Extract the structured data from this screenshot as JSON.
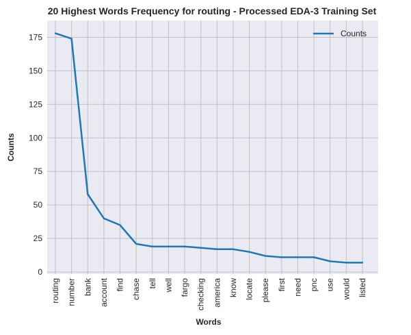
{
  "chart_data": {
    "type": "line",
    "title": "20 Highest Words Frequency for routing - Processed EDA-3 Training Set",
    "xlabel": "Words",
    "ylabel": "Counts",
    "categories": [
      "routing",
      "number",
      "bank",
      "account",
      "find",
      "chase",
      "tell",
      "well",
      "fargo",
      "checking",
      "america",
      "know",
      "locate",
      "please",
      "first",
      "need",
      "pnc",
      "use",
      "would",
      "listed"
    ],
    "series": [
      {
        "name": "Counts",
        "values": [
          178,
          174,
          58,
          40,
          35,
          21,
          19,
          19,
          19,
          18,
          17,
          17,
          15,
          12,
          11,
          11,
          11,
          8,
          7,
          7
        ]
      }
    ],
    "ylim": [
      -1.5,
      187.5
    ],
    "yticks": [
      0,
      25,
      50,
      75,
      100,
      125,
      150,
      175
    ],
    "grid": true,
    "legend_position": "top-right",
    "colors": {
      "line": "#1f77b4",
      "plot_background": "#eaeaf2",
      "grid": "#c0c0c0"
    }
  }
}
